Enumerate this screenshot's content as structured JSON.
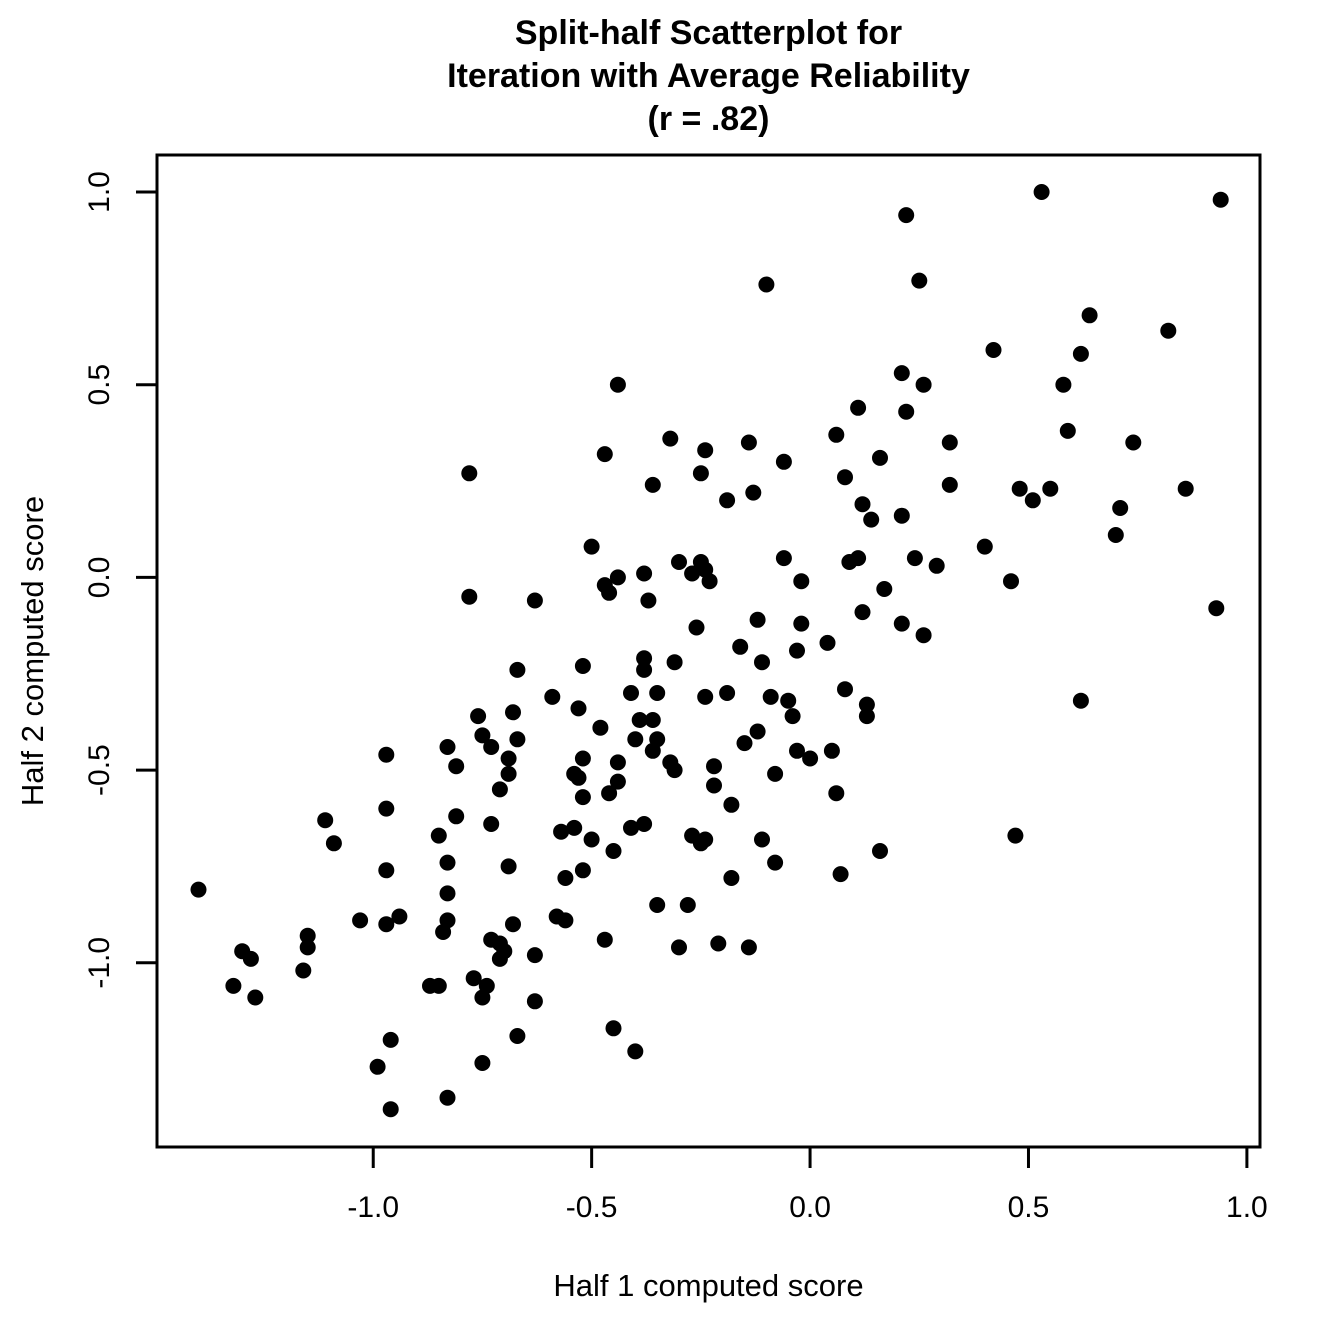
{
  "figure": {
    "title_lines": [
      "Split-half Scatterplot for",
      "Iteration with Average Reliability",
      "(r = .82)"
    ],
    "x_axis_label": "Half 1 computed score",
    "y_axis_label": "Half 2 computed score"
  },
  "colors": {
    "background": "#ffffff",
    "foreground": "#000000",
    "marker": "#000000"
  },
  "chart_data": {
    "type": "scatter",
    "title": "Split-half Scatterplot for Iteration with Average Reliability (r = .82)",
    "annotation": "r = .82",
    "xlabel": "Half 1 computed score",
    "ylabel": "Half 2 computed score",
    "grid": false,
    "legend": null,
    "xlim": [
      -1.495,
      1.03
    ],
    "ylim": [
      -1.478,
      1.096
    ],
    "x_ticks": {
      "values": [
        -1.0,
        -0.5,
        0.0,
        0.5,
        1.0
      ],
      "labels": [
        "-1.0",
        "-0.5",
        "0.0",
        "0.5",
        "1.0"
      ]
    },
    "y_ticks": {
      "values": [
        -1.0,
        -0.5,
        0.0,
        0.5,
        1.0
      ],
      "labels": [
        "-1.0",
        "-0.5",
        "0.0",
        "0.5",
        "1.0"
      ]
    },
    "marker": {
      "shape": "filled-circle",
      "color": "#000000",
      "radius_px": 8
    },
    "points": [
      [
        -0.78,
        0.27
      ],
      [
        -0.1,
        0.76
      ],
      [
        -0.44,
        0.5
      ],
      [
        0.11,
        0.44
      ],
      [
        -0.32,
        0.36
      ],
      [
        0.06,
        0.37
      ],
      [
        -0.24,
        0.33
      ],
      [
        -0.14,
        0.35
      ],
      [
        -0.06,
        0.3
      ],
      [
        -0.47,
        0.32
      ],
      [
        -0.25,
        0.27
      ],
      [
        0.16,
        0.31
      ],
      [
        0.08,
        0.26
      ],
      [
        0.53,
        1.0
      ],
      [
        0.94,
        0.98
      ],
      [
        0.22,
        0.94
      ],
      [
        0.25,
        0.77
      ],
      [
        0.64,
        0.68
      ],
      [
        0.82,
        0.64
      ],
      [
        0.42,
        0.59
      ],
      [
        0.62,
        0.58
      ],
      [
        0.21,
        0.53
      ],
      [
        0.26,
        0.5
      ],
      [
        0.58,
        0.5
      ],
      [
        0.22,
        0.43
      ],
      [
        0.59,
        0.38
      ],
      [
        0.74,
        0.35
      ],
      [
        0.32,
        0.35
      ],
      [
        -0.78,
        -0.05
      ],
      [
        -0.67,
        -0.24
      ],
      [
        -0.76,
        -0.36
      ],
      [
        -0.68,
        -0.35
      ],
      [
        -0.75,
        -0.41
      ],
      [
        -0.67,
        -0.42
      ],
      [
        -0.73,
        -0.44
      ],
      [
        -0.83,
        -0.44
      ],
      [
        -0.97,
        -0.46
      ],
      [
        -0.81,
        -0.49
      ],
      [
        -0.69,
        -0.47
      ],
      [
        -0.69,
        -0.51
      ],
      [
        -0.71,
        -0.55
      ],
      [
        -0.97,
        -0.6
      ],
      [
        -0.36,
        0.24
      ],
      [
        -0.13,
        0.22
      ],
      [
        -0.19,
        0.2
      ],
      [
        0.12,
        0.19
      ],
      [
        0.14,
        0.15
      ],
      [
        -0.5,
        0.08
      ],
      [
        -0.3,
        0.04
      ],
      [
        -0.25,
        0.04
      ],
      [
        -0.27,
        0.01
      ],
      [
        -0.24,
        0.02
      ],
      [
        -0.06,
        0.05
      ],
      [
        0.09,
        0.04
      ],
      [
        0.11,
        0.05
      ],
      [
        -0.38,
        0.01
      ],
      [
        -0.44,
        0.0
      ],
      [
        -0.47,
        -0.02
      ],
      [
        -0.46,
        -0.04
      ],
      [
        -0.23,
        -0.01
      ],
      [
        -0.02,
        -0.01
      ],
      [
        0.17,
        -0.03
      ],
      [
        -0.63,
        -0.06
      ],
      [
        -0.37,
        -0.06
      ],
      [
        0.12,
        -0.09
      ],
      [
        -0.12,
        -0.11
      ],
      [
        -0.26,
        -0.13
      ],
      [
        -0.02,
        -0.12
      ],
      [
        -0.16,
        -0.18
      ],
      [
        -0.03,
        -0.19
      ],
      [
        0.04,
        -0.17
      ],
      [
        -0.38,
        -0.21
      ],
      [
        -0.31,
        -0.22
      ],
      [
        -0.11,
        -0.22
      ],
      [
        -0.38,
        -0.24
      ],
      [
        -0.52,
        -0.23
      ],
      [
        0.08,
        -0.29
      ],
      [
        -0.19,
        -0.3
      ],
      [
        -0.41,
        -0.3
      ],
      [
        -0.35,
        -0.3
      ],
      [
        -0.59,
        -0.31
      ],
      [
        -0.24,
        -0.31
      ],
      [
        -0.09,
        -0.31
      ],
      [
        -0.05,
        -0.32
      ],
      [
        -0.53,
        -0.34
      ],
      [
        -0.04,
        -0.36
      ],
      [
        0.13,
        -0.33
      ],
      [
        0.13,
        -0.36
      ],
      [
        -0.12,
        -0.4
      ],
      [
        -0.39,
        -0.37
      ],
      [
        -0.36,
        -0.37
      ],
      [
        -0.48,
        -0.39
      ],
      [
        -0.4,
        -0.42
      ],
      [
        -0.35,
        -0.42
      ],
      [
        -0.15,
        -0.43
      ],
      [
        -0.36,
        -0.45
      ],
      [
        -0.52,
        -0.47
      ],
      [
        -0.44,
        -0.48
      ],
      [
        -0.32,
        -0.48
      ],
      [
        -0.31,
        -0.5
      ],
      [
        -0.22,
        -0.49
      ],
      [
        -0.03,
        -0.45
      ],
      [
        0.0,
        -0.47
      ],
      [
        0.05,
        -0.45
      ],
      [
        -0.54,
        -0.51
      ],
      [
        -0.53,
        -0.52
      ],
      [
        -0.08,
        -0.51
      ],
      [
        -0.22,
        -0.54
      ],
      [
        -0.44,
        -0.53
      ],
      [
        0.06,
        -0.56
      ],
      [
        -0.46,
        -0.56
      ],
      [
        -0.52,
        -0.57
      ],
      [
        -0.18,
        -0.59
      ],
      [
        0.32,
        0.24
      ],
      [
        0.48,
        0.23
      ],
      [
        0.55,
        0.23
      ],
      [
        0.51,
        0.2
      ],
      [
        0.86,
        0.23
      ],
      [
        0.21,
        0.16
      ],
      [
        0.71,
        0.18
      ],
      [
        0.7,
        0.11
      ],
      [
        0.4,
        0.08
      ],
      [
        0.24,
        0.05
      ],
      [
        0.29,
        0.03
      ],
      [
        0.46,
        -0.01
      ],
      [
        0.93,
        -0.08
      ],
      [
        0.21,
        -0.12
      ],
      [
        0.26,
        -0.15
      ],
      [
        0.62,
        -0.32
      ],
      [
        -1.11,
        -0.63
      ],
      [
        -1.09,
        -0.69
      ],
      [
        -0.81,
        -0.62
      ],
      [
        -0.73,
        -0.64
      ],
      [
        -0.85,
        -0.67
      ],
      [
        -0.97,
        -0.76
      ],
      [
        -0.83,
        -0.74
      ],
      [
        -0.69,
        -0.75
      ],
      [
        -1.4,
        -0.81
      ],
      [
        -0.83,
        -0.82
      ],
      [
        -1.03,
        -0.89
      ],
      [
        -0.94,
        -0.88
      ],
      [
        -0.97,
        -0.9
      ],
      [
        -0.83,
        -0.89
      ],
      [
        -0.84,
        -0.92
      ],
      [
        -0.68,
        -0.9
      ],
      [
        -0.73,
        -0.94
      ],
      [
        -0.71,
        -0.95
      ],
      [
        -0.7,
        -0.97
      ],
      [
        -0.71,
        -0.99
      ],
      [
        -1.15,
        -0.93
      ],
      [
        -1.15,
        -0.96
      ],
      [
        -1.3,
        -0.97
      ],
      [
        -1.28,
        -0.99
      ],
      [
        -1.16,
        -1.02
      ],
      [
        -0.77,
        -1.04
      ],
      [
        -0.87,
        -1.06
      ],
      [
        -0.85,
        -1.06
      ],
      [
        -0.74,
        -1.06
      ],
      [
        -0.75,
        -1.09
      ],
      [
        -1.32,
        -1.06
      ],
      [
        -1.27,
        -1.09
      ],
      [
        -0.96,
        -1.2
      ],
      [
        -0.99,
        -1.27
      ],
      [
        -0.83,
        -1.35
      ],
      [
        -0.96,
        -1.38
      ],
      [
        -0.75,
        -1.26
      ],
      [
        -0.67,
        -1.19
      ],
      [
        -0.57,
        -0.66
      ],
      [
        -0.54,
        -0.65
      ],
      [
        -0.5,
        -0.68
      ],
      [
        -0.41,
        -0.65
      ],
      [
        -0.38,
        -0.64
      ],
      [
        -0.45,
        -0.71
      ],
      [
        -0.27,
        -0.67
      ],
      [
        -0.25,
        -0.69
      ],
      [
        -0.24,
        -0.68
      ],
      [
        -0.11,
        -0.68
      ],
      [
        -0.52,
        -0.76
      ],
      [
        -0.56,
        -0.78
      ],
      [
        -0.08,
        -0.74
      ],
      [
        0.16,
        -0.71
      ],
      [
        0.07,
        -0.77
      ],
      [
        -0.18,
        -0.78
      ],
      [
        -0.35,
        -0.85
      ],
      [
        -0.28,
        -0.85
      ],
      [
        -0.58,
        -0.88
      ],
      [
        -0.56,
        -0.89
      ],
      [
        -0.47,
        -0.94
      ],
      [
        -0.3,
        -0.96
      ],
      [
        -0.21,
        -0.95
      ],
      [
        -0.14,
        -0.96
      ],
      [
        -0.63,
        -0.98
      ],
      [
        -0.63,
        -1.1
      ],
      [
        -0.45,
        -1.17
      ],
      [
        -0.4,
        -1.23
      ],
      [
        0.47,
        -0.67
      ]
    ]
  }
}
